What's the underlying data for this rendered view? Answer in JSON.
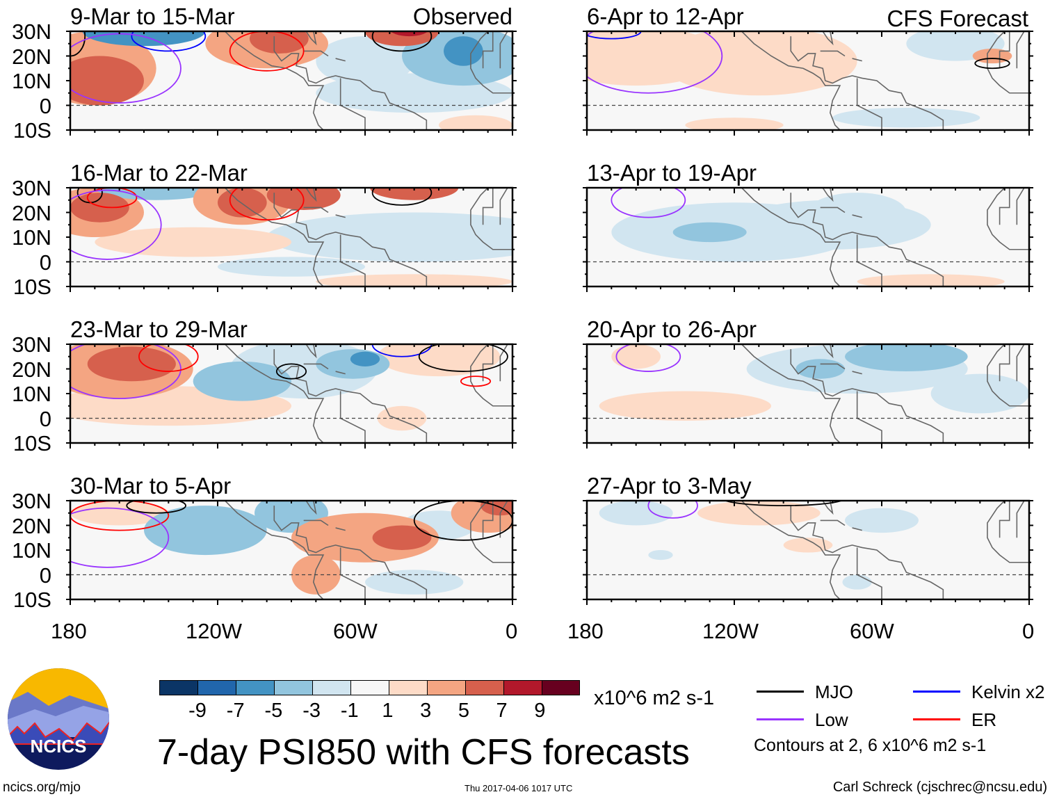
{
  "chart_data": {
    "type": "heatmap",
    "title": "7-day PSI850 with CFS forecasts",
    "variable": "850-hPa streamfunction anomaly",
    "units": "x10^6 m2 s-1",
    "lat_labels": [
      "30N",
      "20N",
      "10N",
      "0",
      "10S"
    ],
    "lon_labels": [
      "180",
      "120W",
      "60W",
      "0"
    ],
    "ylim": [
      -10,
      30
    ],
    "xlim": [
      -180,
      0
    ],
    "colorbar": {
      "levels": [
        "-9",
        "-7",
        "-5",
        "-3",
        "-1",
        "1",
        "3",
        "5",
        "7",
        "9"
      ],
      "colors": [
        "#0b3566",
        "#2166ac",
        "#4393c3",
        "#92c5de",
        "#d1e5f0",
        "#f7f7f7",
        "#fddbc7",
        "#f4a582",
        "#d6604d",
        "#b2182b",
        "#67001f"
      ]
    },
    "contours_note": "Contours at 2, 6 x10^6 m2 s-1",
    "legend": [
      {
        "name": "MJO",
        "color": "#000000"
      },
      {
        "name": "Kelvin x2",
        "color": "#0000ff"
      },
      {
        "name": "Low",
        "color": "#9933ff"
      },
      {
        "name": "ER",
        "color": "#ff0000"
      }
    ],
    "left_column_label": "Observed",
    "right_column_label": "CFS Forecast",
    "panels": [
      {
        "title": "9-Mar to 15-Mar",
        "column": "Observed"
      },
      {
        "title": "16-Mar to 22-Mar",
        "column": "Observed"
      },
      {
        "title": "23-Mar to 29-Mar",
        "column": "Observed"
      },
      {
        "title": "30-Mar to 5-Apr",
        "column": "Observed"
      },
      {
        "title": "6-Apr to 12-Apr",
        "column": "CFS Forecast"
      },
      {
        "title": "13-Apr to 19-Apr",
        "column": "CFS Forecast"
      },
      {
        "title": "20-Apr to 26-Apr",
        "column": "CFS Forecast"
      },
      {
        "title": "27-Apr to 3-May",
        "column": "CFS Forecast"
      }
    ]
  },
  "footer": {
    "logo_text": "NCICS",
    "url": "ncics.org/mjo",
    "timestamp": "Thu 2017-04-06 1017 UTC",
    "author": "Carl Schreck (cjschrec@ncsu.edu)"
  }
}
